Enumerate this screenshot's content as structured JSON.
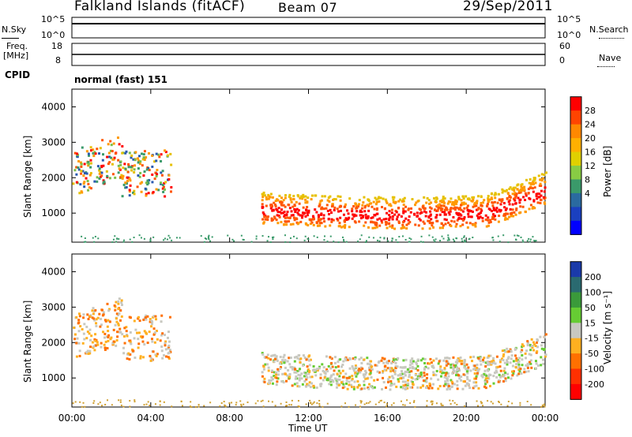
{
  "header": {
    "station": "Falkland Islands (fitACF)",
    "beam": "Beam 07",
    "date": "29/Sep/2011"
  },
  "strip_labels": {
    "nsky": "N.Sky",
    "nsearch": "N.Search",
    "freq_top": "Freq.",
    "freq_unit": "[MHz]",
    "nave": "Nave",
    "cpid": "CPID",
    "cpid_value": "normal (fast) 151",
    "noise_ticks": [
      "10^5",
      "10^0"
    ],
    "freq_ticks": [
      "18",
      "8"
    ],
    "nave_ticks": [
      "60",
      "0"
    ]
  },
  "chart_data": [
    {
      "type": "heatmap",
      "title": "",
      "xlabel": "Time UT",
      "ylabel": "Slant Range [km]",
      "xlim": [
        0,
        24
      ],
      "ylim": [
        180,
        4500
      ],
      "x_ticks": [
        "00:00",
        "04:00",
        "08:00",
        "12:00",
        "16:00",
        "20:00",
        "00:00"
      ],
      "y_ticks": [
        "1000",
        "2000",
        "3000",
        "4000"
      ],
      "colorbar": {
        "label": "Power [dB]",
        "ticks": [
          "28",
          "24",
          "20",
          "16",
          "12",
          "8",
          "4"
        ],
        "colors": [
          "#ff0000",
          "#ff4400",
          "#ff8800",
          "#ffb000",
          "#e0d000",
          "#88cc44",
          "#3a9a6a",
          "#2a6aa0",
          "#1a40c0",
          "#0000ff"
        ]
      }
    },
    {
      "type": "heatmap",
      "title": "",
      "xlabel": "Time UT",
      "ylabel": "Slant Range [km]",
      "xlim": [
        0,
        24
      ],
      "ylim": [
        180,
        4500
      ],
      "x_ticks": [
        "00:00",
        "04:00",
        "08:00",
        "12:00",
        "16:00",
        "20:00",
        "00:00"
      ],
      "y_ticks": [
        "1000",
        "2000",
        "3000",
        "4000"
      ],
      "colorbar": {
        "label": "Velocity [m s⁻¹]",
        "ticks": [
          "200",
          "100",
          "50",
          "15",
          "-15",
          "-50",
          "-100",
          "-200"
        ],
        "colors": [
          "#1a3aaa",
          "#2a6a70",
          "#3a9a3a",
          "#66cc33",
          "#c8c8c0",
          "#ffb020",
          "#ff7000",
          "#ff3000",
          "#ff0000"
        ]
      }
    }
  ]
}
